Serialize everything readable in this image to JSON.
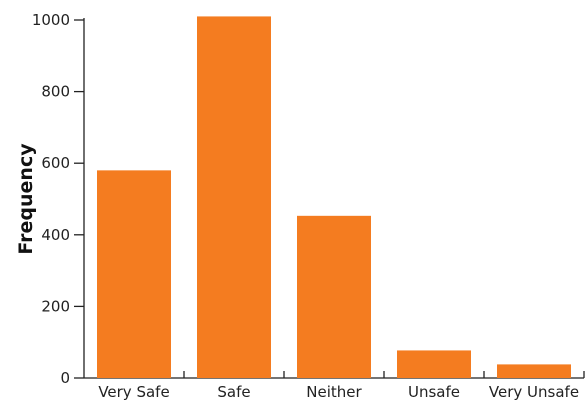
{
  "chart_data": {
    "type": "bar",
    "title": "",
    "xlabel": "",
    "ylabel": "Frequency",
    "categories": [
      "Very Safe",
      "Safe",
      "Neither",
      "Unsafe",
      "Very Unsafe"
    ],
    "values": [
      580,
      1010,
      453,
      77,
      38
    ],
    "ylim": [
      0,
      1000
    ],
    "yticks": [
      0,
      200,
      400,
      600,
      800,
      1000
    ],
    "grid": false,
    "legend": "none",
    "bar_color": "#f47c20",
    "axis_color": "#222222"
  }
}
